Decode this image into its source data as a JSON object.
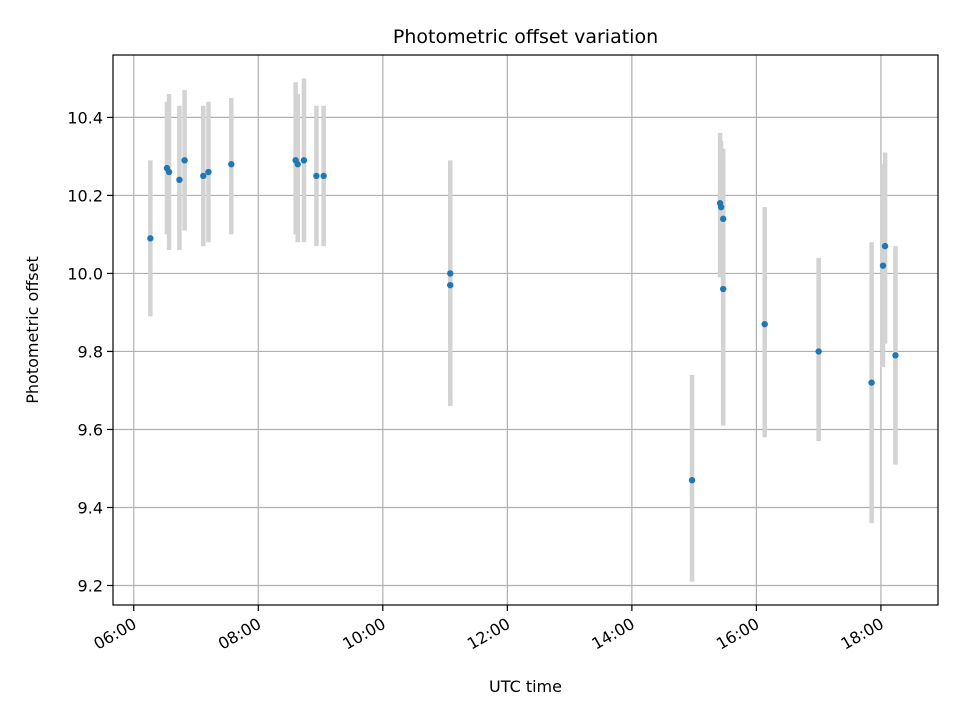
{
  "chart_data": {
    "type": "scatter",
    "title": "Photometric offset variation",
    "xlabel": "UTC time",
    "ylabel": "Photometric offset",
    "xlim": [
      "05:40",
      "18:55"
    ],
    "ylim": [
      9.15,
      10.56
    ],
    "x_ticks": [
      "06:00",
      "08:00",
      "10:00",
      "12:00",
      "14:00",
      "16:00",
      "18:00"
    ],
    "y_ticks": [
      9.2,
      9.4,
      9.6,
      9.8,
      10.0,
      10.2,
      10.4
    ],
    "grid": true,
    "colors": {
      "points": "#1f77b4",
      "errorbars": "#d3d3d3",
      "grid": "#b0b0b0"
    },
    "series": [
      {
        "points": [
          {
            "x": "06:16",
            "y": 10.09,
            "yerr_low": 9.89,
            "yerr_high": 10.29
          },
          {
            "x": "06:32",
            "y": 10.27,
            "yerr_low": 10.1,
            "yerr_high": 10.44
          },
          {
            "x": "06:34",
            "y": 10.26,
            "yerr_low": 10.06,
            "yerr_high": 10.46
          },
          {
            "x": "06:44",
            "y": 10.24,
            "yerr_low": 10.06,
            "yerr_high": 10.43
          },
          {
            "x": "06:49",
            "y": 10.29,
            "yerr_low": 10.11,
            "yerr_high": 10.47
          },
          {
            "x": "07:07",
            "y": 10.25,
            "yerr_low": 10.07,
            "yerr_high": 10.43
          },
          {
            "x": "07:12",
            "y": 10.26,
            "yerr_low": 10.08,
            "yerr_high": 10.44
          },
          {
            "x": "07:34",
            "y": 10.28,
            "yerr_low": 10.1,
            "yerr_high": 10.45
          },
          {
            "x": "08:36",
            "y": 10.29,
            "yerr_low": 10.1,
            "yerr_high": 10.49
          },
          {
            "x": "08:38",
            "y": 10.28,
            "yerr_low": 10.08,
            "yerr_high": 10.46
          },
          {
            "x": "08:44",
            "y": 10.29,
            "yerr_low": 10.08,
            "yerr_high": 10.5
          },
          {
            "x": "08:56",
            "y": 10.25,
            "yerr_low": 10.07,
            "yerr_high": 10.43
          },
          {
            "x": "09:03",
            "y": 10.25,
            "yerr_low": 10.07,
            "yerr_high": 10.43
          },
          {
            "x": "11:05",
            "y": 10.0,
            "yerr_low": 9.71,
            "yerr_high": 10.29
          },
          {
            "x": "11:05",
            "y": 9.97,
            "yerr_low": 9.66,
            "yerr_high": 10.27
          },
          {
            "x": "14:58",
            "y": 9.47,
            "yerr_low": 9.21,
            "yerr_high": 9.74
          },
          {
            "x": "15:25",
            "y": 10.18,
            "yerr_low": 9.99,
            "yerr_high": 10.36
          },
          {
            "x": "15:26",
            "y": 10.17,
            "yerr_low": 9.99,
            "yerr_high": 10.34
          },
          {
            "x": "15:28",
            "y": 10.14,
            "yerr_low": 9.96,
            "yerr_high": 10.32
          },
          {
            "x": "15:28",
            "y": 9.96,
            "yerr_low": 9.61,
            "yerr_high": 10.3
          },
          {
            "x": "16:08",
            "y": 9.87,
            "yerr_low": 9.58,
            "yerr_high": 10.17
          },
          {
            "x": "17:00",
            "y": 9.8,
            "yerr_low": 9.57,
            "yerr_high": 10.04
          },
          {
            "x": "17:51",
            "y": 9.72,
            "yerr_low": 9.36,
            "yerr_high": 10.08
          },
          {
            "x": "18:02",
            "y": 10.02,
            "yerr_low": 9.76,
            "yerr_high": 10.28
          },
          {
            "x": "18:04",
            "y": 10.07,
            "yerr_low": 9.82,
            "yerr_high": 10.31
          },
          {
            "x": "18:14",
            "y": 9.79,
            "yerr_low": 9.51,
            "yerr_high": 10.07
          }
        ]
      }
    ]
  }
}
